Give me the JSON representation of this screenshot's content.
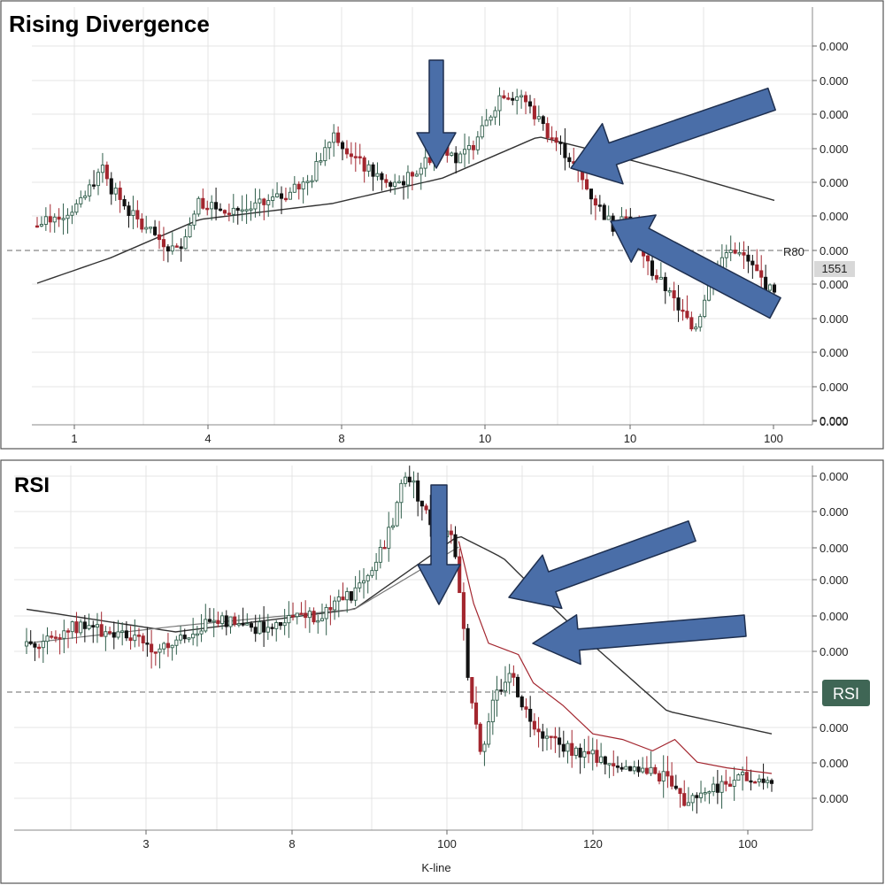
{
  "chart_data": [
    {
      "type": "candlestick",
      "title": "Rising Divergence",
      "x_tick_labels": [
        "1",
        "4",
        "8",
        "10",
        "10",
        "100"
      ],
      "y_tick_labels": [
        "0.000",
        "0.000",
        "0.000",
        "0.000",
        "0.000",
        "0.000",
        "0.000",
        "0.000",
        "0.000",
        "0.000",
        "0.000",
        "0.000",
        "0.000"
      ],
      "dashed_line_label": "R80",
      "price_tag": "1551",
      "grid": true,
      "trend": [
        {
          "x": 0,
          "y": 48
        },
        {
          "x": 6,
          "y": 55
        },
        {
          "x": 9,
          "y": 68
        },
        {
          "x": 10,
          "y": 60
        },
        {
          "x": 14,
          "y": 48
        },
        {
          "x": 19,
          "y": 40
        },
        {
          "x": 22,
          "y": 56
        },
        {
          "x": 24,
          "y": 54
        },
        {
          "x": 28,
          "y": 53
        },
        {
          "x": 31,
          "y": 55
        },
        {
          "x": 34,
          "y": 58
        },
        {
          "x": 37,
          "y": 62
        },
        {
          "x": 40,
          "y": 78
        },
        {
          "x": 44,
          "y": 67
        },
        {
          "x": 48,
          "y": 60
        },
        {
          "x": 51,
          "y": 64
        },
        {
          "x": 55,
          "y": 74
        },
        {
          "x": 57,
          "y": 68
        },
        {
          "x": 60,
          "y": 76
        },
        {
          "x": 63,
          "y": 90
        },
        {
          "x": 66,
          "y": 88
        },
        {
          "x": 69,
          "y": 78
        },
        {
          "x": 72,
          "y": 70
        },
        {
          "x": 75,
          "y": 58
        },
        {
          "x": 78,
          "y": 48
        },
        {
          "x": 80,
          "y": 52
        },
        {
          "x": 83,
          "y": 35
        },
        {
          "x": 86,
          "y": 26
        },
        {
          "x": 89,
          "y": 15
        },
        {
          "x": 92,
          "y": 34
        },
        {
          "x": 94,
          "y": 42
        },
        {
          "x": 97,
          "y": 35
        },
        {
          "x": 100,
          "y": 26
        }
      ],
      "moving_average": [
        {
          "x": 0,
          "y": 30
        },
        {
          "x": 10,
          "y": 38
        },
        {
          "x": 22,
          "y": 50
        },
        {
          "x": 40,
          "y": 55
        },
        {
          "x": 55,
          "y": 63
        },
        {
          "x": 68,
          "y": 76
        },
        {
          "x": 75,
          "y": 72
        },
        {
          "x": 88,
          "y": 64
        },
        {
          "x": 100,
          "y": 56
        }
      ]
    },
    {
      "type": "candlestick",
      "title": "RSI",
      "xlabel": "K-line",
      "x_tick_labels": [
        "3",
        "8",
        "100",
        "120",
        "100"
      ],
      "y_tick_labels": [
        "0.000",
        "0.000",
        "0.000",
        "0.000",
        "0.000",
        "0.000",
        "0.000",
        "0.000",
        "0.000"
      ],
      "dashed_line_label": "RSI",
      "grid": true,
      "trend": [
        {
          "x": 0,
          "y": 25
        },
        {
          "x": 6,
          "y": 32
        },
        {
          "x": 10,
          "y": 30
        },
        {
          "x": 14,
          "y": 28
        },
        {
          "x": 18,
          "y": 24
        },
        {
          "x": 22,
          "y": 30
        },
        {
          "x": 26,
          "y": 34
        },
        {
          "x": 30,
          "y": 31
        },
        {
          "x": 34,
          "y": 33
        },
        {
          "x": 38,
          "y": 35
        },
        {
          "x": 42,
          "y": 40
        },
        {
          "x": 46,
          "y": 48
        },
        {
          "x": 49,
          "y": 68
        },
        {
          "x": 51,
          "y": 88
        },
        {
          "x": 53,
          "y": 75
        },
        {
          "x": 55,
          "y": 65
        },
        {
          "x": 57,
          "y": 63
        },
        {
          "x": 58,
          "y": 48
        },
        {
          "x": 59,
          "y": 20
        },
        {
          "x": 60,
          "y": 2
        },
        {
          "x": 61,
          "y": -12
        },
        {
          "x": 63,
          "y": 8
        },
        {
          "x": 65,
          "y": 15
        },
        {
          "x": 67,
          "y": 2
        },
        {
          "x": 70,
          "y": -8
        },
        {
          "x": 74,
          "y": -12
        },
        {
          "x": 78,
          "y": -16
        },
        {
          "x": 82,
          "y": -18
        },
        {
          "x": 86,
          "y": -22
        },
        {
          "x": 88,
          "y": -30
        },
        {
          "x": 91,
          "y": -26
        },
        {
          "x": 95,
          "y": -22
        },
        {
          "x": 100,
          "y": -22
        }
      ],
      "moving_average": [
        {
          "x": 0,
          "y": 38
        },
        {
          "x": 20,
          "y": 30
        },
        {
          "x": 44,
          "y": 38
        },
        {
          "x": 58,
          "y": 64
        },
        {
          "x": 64,
          "y": 56
        },
        {
          "x": 74,
          "y": 30
        },
        {
          "x": 86,
          "y": 2
        },
        {
          "x": 100,
          "y": -6
        }
      ],
      "secondary_average": [
        {
          "x": 0,
          "y": 26
        },
        {
          "x": 20,
          "y": 32
        },
        {
          "x": 44,
          "y": 38
        },
        {
          "x": 58,
          "y": 60
        }
      ],
      "signal_line": [
        {
          "x": 58,
          "y": 62
        },
        {
          "x": 60,
          "y": 40
        },
        {
          "x": 62,
          "y": 26
        },
        {
          "x": 66,
          "y": 22
        },
        {
          "x": 68,
          "y": 12
        },
        {
          "x": 72,
          "y": 4
        },
        {
          "x": 76,
          "y": -6
        },
        {
          "x": 80,
          "y": -8
        },
        {
          "x": 84,
          "y": -12
        },
        {
          "x": 87,
          "y": -8
        },
        {
          "x": 90,
          "y": -16
        },
        {
          "x": 94,
          "y": -18
        },
        {
          "x": 100,
          "y": -20
        }
      ]
    }
  ],
  "colors": {
    "bull": "#2f5d4a",
    "bear": "#a3262f",
    "arrow": "#4a6ea8",
    "arrow_stroke": "#1e2f4f",
    "rsi_badge": "#3f6655",
    "price_tag": "#d8d8d8"
  }
}
